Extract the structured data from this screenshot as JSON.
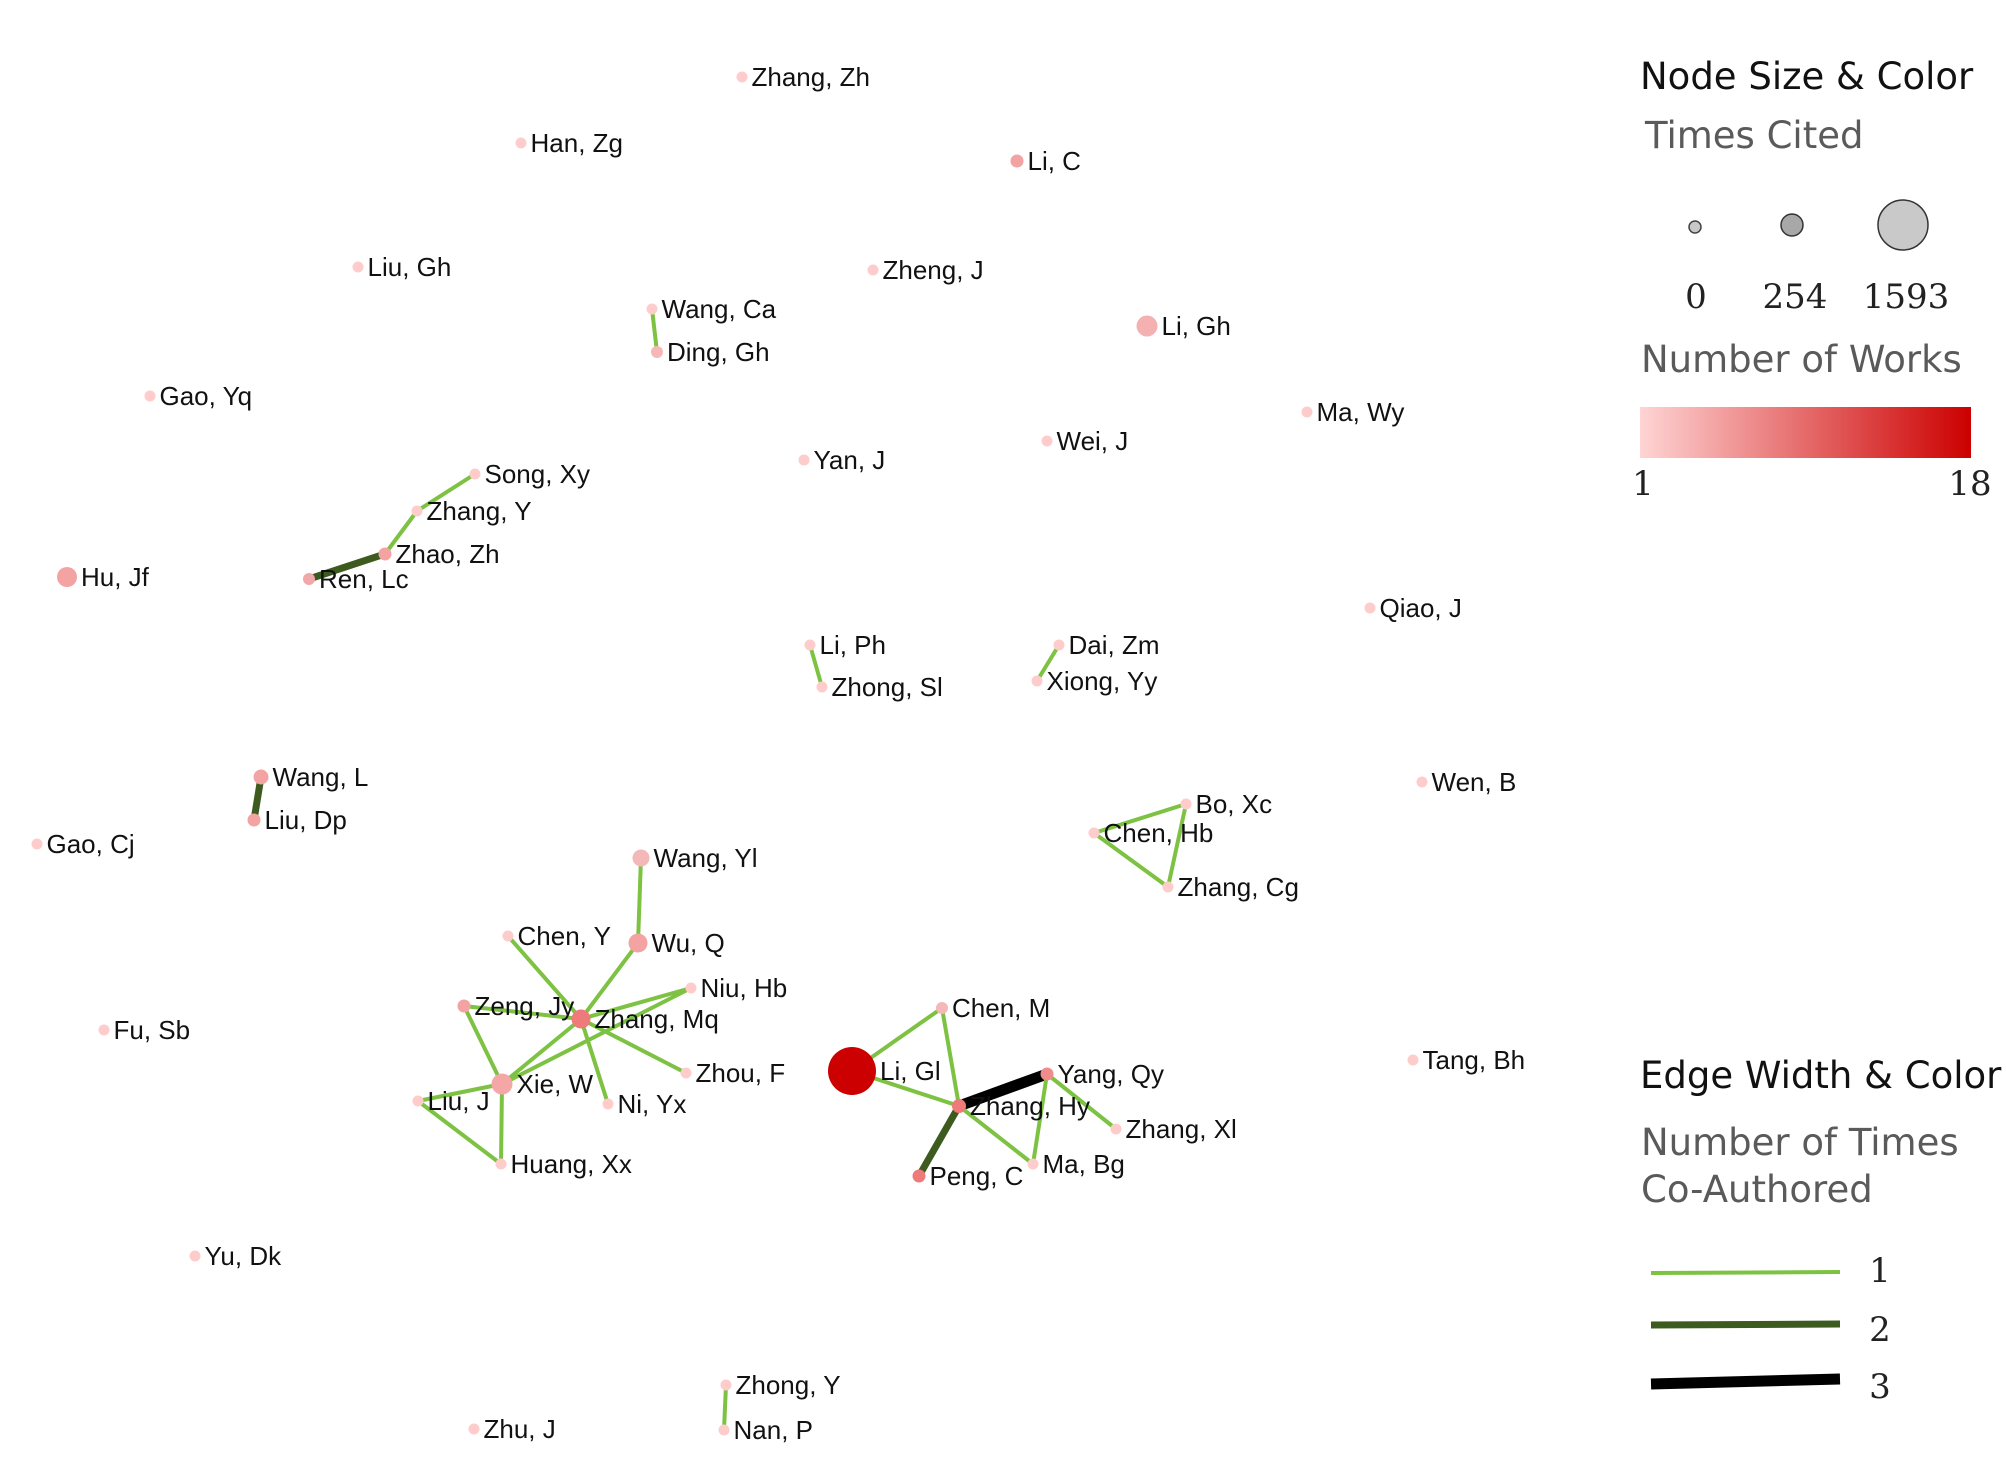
{
  "legend": {
    "node_title": "Node Size & Color",
    "size_subtitle": "Times Cited",
    "size_ticks": [
      "0",
      "254",
      "1593"
    ],
    "color_subtitle": "Number of Works",
    "color_min": "1",
    "color_max": "18",
    "color_low_hex": "#ffd4d4",
    "color_high_hex": "#cc0000",
    "edge_title": "Edge Width & Color",
    "edge_subtitle_line1": "Number of Times",
    "edge_subtitle_line2": "Co-Authored",
    "edge_levels": [
      {
        "label": "1",
        "color": "#7dc242"
      },
      {
        "label": "2",
        "color": "#3d5a1f"
      },
      {
        "label": "3",
        "color": "#000000"
      }
    ]
  },
  "nodes": [
    {
      "id": "Zhang, Zh"
    },
    {
      "id": "Han, Zg"
    },
    {
      "id": "Li, C"
    },
    {
      "id": "Liu, Gh"
    },
    {
      "id": "Zheng, J"
    },
    {
      "id": "Wang, Ca"
    },
    {
      "id": "Ding, Gh"
    },
    {
      "id": "Li, Gh"
    },
    {
      "id": "Gao, Yq"
    },
    {
      "id": "Ma, Wy"
    },
    {
      "id": "Song, Xy"
    },
    {
      "id": "Yan, J"
    },
    {
      "id": "Wei, J"
    },
    {
      "id": "Zhang, Y"
    },
    {
      "id": "Zhao, Zh"
    },
    {
      "id": "Hu, Jf"
    },
    {
      "id": "Ren, Lc"
    },
    {
      "id": "Qiao, J"
    },
    {
      "id": "Li, Ph"
    },
    {
      "id": "Dai, Zm"
    },
    {
      "id": "Zhong, Sl"
    },
    {
      "id": "Xiong, Yy"
    },
    {
      "id": "Wang, L"
    },
    {
      "id": "Wen, B"
    },
    {
      "id": "Bo, Xc"
    },
    {
      "id": "Liu, Dp"
    },
    {
      "id": "Chen, Hb"
    },
    {
      "id": "Gao, Cj"
    },
    {
      "id": "Wang, Yl"
    },
    {
      "id": "Zhang, Cg"
    },
    {
      "id": "Chen, Y"
    },
    {
      "id": "Wu, Q"
    },
    {
      "id": "Niu, Hb"
    },
    {
      "id": "Zeng, Jy"
    },
    {
      "id": "Zhang, Mq"
    },
    {
      "id": "Chen, M"
    },
    {
      "id": "Fu, Sb"
    },
    {
      "id": "Zhou, F"
    },
    {
      "id": "Tang, Bh"
    },
    {
      "id": "Yang, Qy"
    },
    {
      "id": "Li, Gl"
    },
    {
      "id": "Xie, W"
    },
    {
      "id": "Liu, J"
    },
    {
      "id": "Ni, Yx"
    },
    {
      "id": "Zhang, Hy"
    },
    {
      "id": "Zhang, Xl"
    },
    {
      "id": "Huang, Xx"
    },
    {
      "id": "Ma, Bg"
    },
    {
      "id": "Peng, C"
    },
    {
      "id": "Yu, Dk"
    },
    {
      "id": "Zhong, Y"
    },
    {
      "id": "Zhu, J"
    },
    {
      "id": "Nan, P"
    }
  ],
  "edges": [
    {
      "source": "Wang, Ca",
      "target": "Ding, Gh",
      "weight": 1
    },
    {
      "source": "Song, Xy",
      "target": "Zhang, Y",
      "weight": 1
    },
    {
      "source": "Zhang, Y",
      "target": "Zhao, Zh",
      "weight": 1
    },
    {
      "source": "Zhao, Zh",
      "target": "Ren, Lc",
      "weight": 2
    },
    {
      "source": "Li, Ph",
      "target": "Zhong, Sl",
      "weight": 1
    },
    {
      "source": "Dai, Zm",
      "target": "Xiong, Yy",
      "weight": 1
    },
    {
      "source": "Wang, L",
      "target": "Liu, Dp",
      "weight": 2
    },
    {
      "source": "Bo, Xc",
      "target": "Chen, Hb",
      "weight": 1
    },
    {
      "source": "Bo, Xc",
      "target": "Zhang, Cg",
      "weight": 1
    },
    {
      "source": "Chen, Hb",
      "target": "Zhang, Cg",
      "weight": 1
    },
    {
      "source": "Wang, Yl",
      "target": "Wu, Q",
      "weight": 1
    },
    {
      "source": "Wu, Q",
      "target": "Zhang, Mq",
      "weight": 1
    },
    {
      "source": "Chen, Y",
      "target": "Zhang, Mq",
      "weight": 1
    },
    {
      "source": "Zeng, Jy",
      "target": "Zhang, Mq",
      "weight": 1
    },
    {
      "source": "Niu, Hb",
      "target": "Zhang, Mq",
      "weight": 1
    },
    {
      "source": "Zhou, F",
      "target": "Zhang, Mq",
      "weight": 1
    },
    {
      "source": "Ni, Yx",
      "target": "Zhang, Mq",
      "weight": 1
    },
    {
      "source": "Xie, W",
      "target": "Zhang, Mq",
      "weight": 1
    },
    {
      "source": "Niu, Hb",
      "target": "Xie, W",
      "weight": 1
    },
    {
      "source": "Zeng, Jy",
      "target": "Xie, W",
      "weight": 1
    },
    {
      "source": "Xie, W",
      "target": "Liu, J",
      "weight": 1
    },
    {
      "source": "Xie, W",
      "target": "Huang, Xx",
      "weight": 1
    },
    {
      "source": "Liu, J",
      "target": "Huang, Xx",
      "weight": 1
    },
    {
      "source": "Chen, M",
      "target": "Li, Gl",
      "weight": 1
    },
    {
      "source": "Chen, M",
      "target": "Zhang, Hy",
      "weight": 1
    },
    {
      "source": "Li, Gl",
      "target": "Zhang, Hy",
      "weight": 1
    },
    {
      "source": "Zhang, Hy",
      "target": "Yang, Qy",
      "weight": 3
    },
    {
      "source": "Zhang, Hy",
      "target": "Peng, C",
      "weight": 2
    },
    {
      "source": "Zhang, Hy",
      "target": "Ma, Bg",
      "weight": 1
    },
    {
      "source": "Yang, Qy",
      "target": "Ma, Bg",
      "weight": 1
    },
    {
      "source": "Yang, Qy",
      "target": "Zhang, Xl",
      "weight": 1
    },
    {
      "source": "Zhong, Y",
      "target": "Nan, P",
      "weight": 1
    }
  ]
}
